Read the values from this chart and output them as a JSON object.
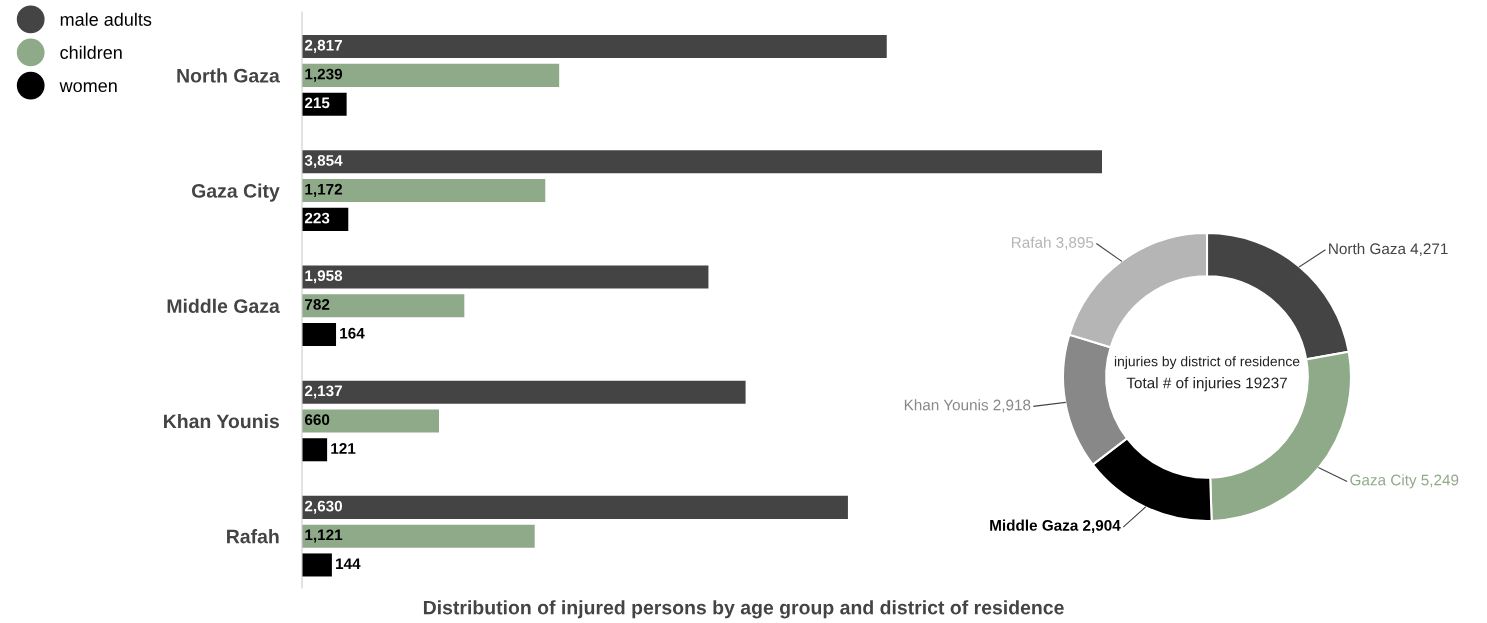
{
  "chart_data": [
    {
      "type": "bar",
      "orientation": "horizontal",
      "title": "Distribution of injured persons by age group and district of residence",
      "categories": [
        "North Gaza",
        "Gaza City",
        "Middle Gaza",
        "Khan Younis",
        "Rafah"
      ],
      "series": [
        {
          "name": "male adults",
          "color": "#444444",
          "values": [
            2817,
            3854,
            1958,
            2137,
            2630
          ],
          "value_labels": [
            "2,817",
            "3,854",
            "1,958",
            "2,137",
            "2,630"
          ]
        },
        {
          "name": "children",
          "color": "#8faa88",
          "values": [
            1239,
            1172,
            782,
            660,
            1121
          ],
          "value_labels": [
            "1,239",
            "1,172",
            "782",
            "660",
            "1,121"
          ]
        },
        {
          "name": "women",
          "color": "#000000",
          "values": [
            215,
            223,
            164,
            121,
            144
          ],
          "value_labels": [
            "215",
            "223",
            "164",
            "121",
            "144"
          ]
        }
      ],
      "legend": "top left"
    },
    {
      "type": "donut",
      "categories": [
        "North Gaza",
        "Gaza City",
        "Middle Gaza",
        "Khan Younis",
        "Rafah"
      ],
      "values": [
        4271,
        5249,
        2904,
        2918,
        3895
      ],
      "value_labels": [
        "4,271",
        "5,249",
        "2,904",
        "2,918",
        "3,895"
      ],
      "colors": [
        "#444444",
        "#8faa88",
        "#000000",
        "#888888",
        "#b5b5b5"
      ],
      "annotations": [
        "injuries by district of residence",
        "Total # of injuries 19237"
      ]
    }
  ]
}
